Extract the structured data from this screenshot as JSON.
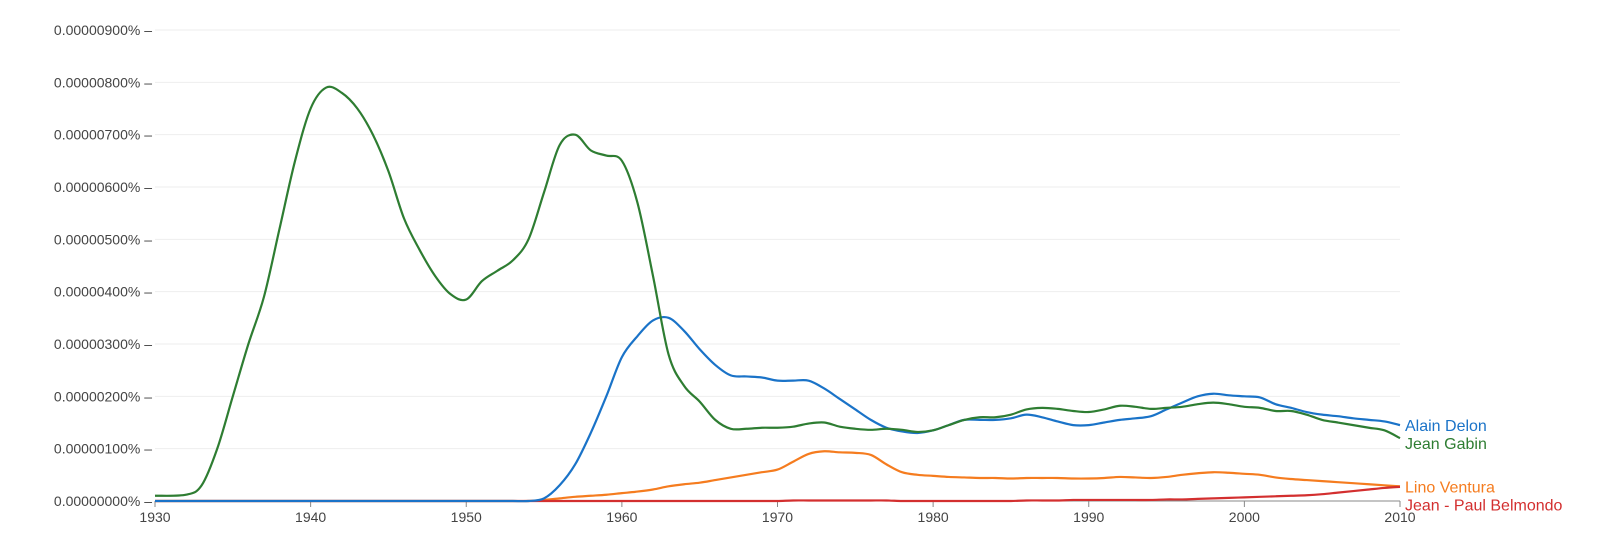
{
  "chart_data": {
    "type": "line",
    "title": "",
    "xlabel": "",
    "ylabel": "",
    "xlim": [
      1930,
      2010
    ],
    "ylim": [
      0,
      9
    ],
    "y_unit_note": "values are in units of 0.000001 percent",
    "x_ticks": [
      "1930",
      "1940",
      "1950",
      "1960",
      "1970",
      "1980",
      "1990",
      "2000",
      "2010"
    ],
    "y_ticks": [
      "0.00000000% –",
      "0.00000100% –",
      "0.00000200% –",
      "0.00000300% –",
      "0.00000400% –",
      "0.00000500% –",
      "0.00000600% –",
      "0.00000700% –",
      "0.00000800% –",
      "0.00000900% –"
    ],
    "grid": true,
    "legend": "end-of-line labels",
    "x": [
      1930,
      1932,
      1933,
      1934,
      1935,
      1936,
      1937,
      1938,
      1939,
      1940,
      1941,
      1942,
      1943,
      1944,
      1945,
      1946,
      1947,
      1948,
      1949,
      1950,
      1951,
      1952,
      1953,
      1954,
      1955,
      1956,
      1957,
      1958,
      1959,
      1960,
      1961,
      1962,
      1963,
      1964,
      1965,
      1966,
      1967,
      1968,
      1969,
      1970,
      1971,
      1972,
      1973,
      1974,
      1975,
      1976,
      1977,
      1978,
      1979,
      1980,
      1981,
      1982,
      1983,
      1984,
      1985,
      1986,
      1987,
      1988,
      1989,
      1990,
      1991,
      1992,
      1993,
      1994,
      1995,
      1996,
      1997,
      1998,
      1999,
      2000,
      2001,
      2002,
      2003,
      2004,
      2005,
      2006,
      2007,
      2008,
      2009,
      2010
    ],
    "series": [
      {
        "name": "Alain Delon",
        "color": "#1a73c8",
        "values": [
          0,
          0,
          0,
          0,
          0,
          0,
          0,
          0,
          0,
          0,
          0,
          0,
          0,
          0,
          0,
          0,
          0,
          0,
          0,
          0,
          0,
          0,
          0,
          0,
          0.05,
          0.3,
          0.7,
          1.3,
          2.0,
          2.75,
          3.15,
          3.45,
          3.5,
          3.25,
          2.9,
          2.6,
          2.4,
          2.38,
          2.36,
          2.3,
          2.3,
          2.3,
          2.15,
          1.95,
          1.75,
          1.55,
          1.4,
          1.33,
          1.3,
          1.35,
          1.45,
          1.55,
          1.55,
          1.55,
          1.58,
          1.65,
          1.6,
          1.52,
          1.45,
          1.45,
          1.5,
          1.55,
          1.58,
          1.62,
          1.75,
          1.88,
          2.0,
          2.05,
          2.02,
          2.0,
          1.98,
          1.85,
          1.78,
          1.7,
          1.65,
          1.62,
          1.58,
          1.55,
          1.52,
          1.45
        ]
      },
      {
        "name": "Jean Gabin",
        "color": "#2e7d32",
        "values": [
          0.1,
          0.12,
          0.3,
          1.0,
          2.0,
          3.0,
          3.9,
          5.2,
          6.5,
          7.5,
          7.9,
          7.8,
          7.5,
          7.0,
          6.3,
          5.4,
          4.8,
          4.3,
          3.95,
          3.85,
          4.2,
          4.4,
          4.6,
          5.0,
          5.9,
          6.8,
          7.0,
          6.7,
          6.6,
          6.5,
          5.7,
          4.3,
          2.8,
          2.2,
          1.9,
          1.55,
          1.38,
          1.38,
          1.4,
          1.4,
          1.42,
          1.48,
          1.5,
          1.42,
          1.38,
          1.36,
          1.38,
          1.36,
          1.32,
          1.35,
          1.45,
          1.55,
          1.6,
          1.6,
          1.65,
          1.75,
          1.78,
          1.76,
          1.72,
          1.7,
          1.75,
          1.82,
          1.8,
          1.76,
          1.78,
          1.8,
          1.85,
          1.88,
          1.85,
          1.8,
          1.78,
          1.72,
          1.72,
          1.65,
          1.55,
          1.5,
          1.45,
          1.4,
          1.35,
          1.2
        ]
      },
      {
        "name": "Jean - Paul Belmondo",
        "color": "#d32f2f",
        "values": [
          0,
          0,
          0,
          0,
          0,
          0,
          0,
          0,
          0,
          0,
          0,
          0,
          0,
          0,
          0,
          0,
          0,
          0,
          0,
          0,
          0,
          0,
          0,
          0,
          0,
          0,
          0,
          0,
          0,
          0,
          0,
          0,
          0,
          0,
          0,
          0,
          0,
          0,
          0,
          0,
          0.01,
          0.01,
          0.01,
          0.01,
          0.01,
          0.01,
          0.01,
          0,
          0,
          0,
          0,
          0,
          0,
          0,
          0,
          0.01,
          0.01,
          0.01,
          0.02,
          0.02,
          0.02,
          0.02,
          0.02,
          0.02,
          0.03,
          0.03,
          0.04,
          0.05,
          0.06,
          0.07,
          0.08,
          0.09,
          0.1,
          0.11,
          0.13,
          0.16,
          0.19,
          0.22,
          0.25,
          0.27
        ]
      },
      {
        "name": "Lino Ventura",
        "color": "#f57c1f",
        "values": [
          0,
          0,
          0,
          0,
          0,
          0,
          0,
          0,
          0,
          0,
          0,
          0,
          0,
          0,
          0,
          0,
          0,
          0,
          0,
          0,
          0,
          0,
          0,
          0,
          0.02,
          0.05,
          0.08,
          0.1,
          0.12,
          0.15,
          0.18,
          0.22,
          0.28,
          0.32,
          0.35,
          0.4,
          0.45,
          0.5,
          0.55,
          0.6,
          0.75,
          0.9,
          0.95,
          0.93,
          0.92,
          0.88,
          0.7,
          0.55,
          0.5,
          0.48,
          0.46,
          0.45,
          0.44,
          0.44,
          0.43,
          0.44,
          0.44,
          0.44,
          0.43,
          0.43,
          0.44,
          0.46,
          0.45,
          0.44,
          0.46,
          0.5,
          0.53,
          0.55,
          0.54,
          0.52,
          0.5,
          0.45,
          0.42,
          0.4,
          0.38,
          0.36,
          0.34,
          0.32,
          0.3,
          0.28
        ]
      }
    ]
  }
}
